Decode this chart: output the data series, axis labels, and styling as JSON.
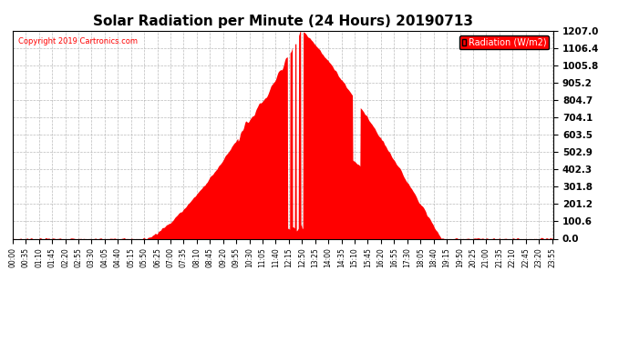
{
  "title": "Solar Radiation per Minute (24 Hours) 20190713",
  "copyright": "Copyright 2019 Cartronics.com",
  "legend_label": "Radiation (W/m2)",
  "ylabel_values": [
    0.0,
    100.6,
    201.2,
    301.8,
    402.3,
    502.9,
    603.5,
    704.1,
    804.7,
    905.2,
    1005.8,
    1106.4,
    1207.0
  ],
  "fill_color": "#FF0000",
  "background_color": "#FFFFFF",
  "grid_color": "#AAAAAA",
  "copyright_color": "#FF0000",
  "dashed_line_color": "#FF0000",
  "title_fontsize": 11,
  "tick_fontsize": 5.5,
  "ytick_fontsize": 7.5,
  "ymax": 1207.0,
  "rise_min": 350,
  "peak_min": 770,
  "set_min": 1140
}
